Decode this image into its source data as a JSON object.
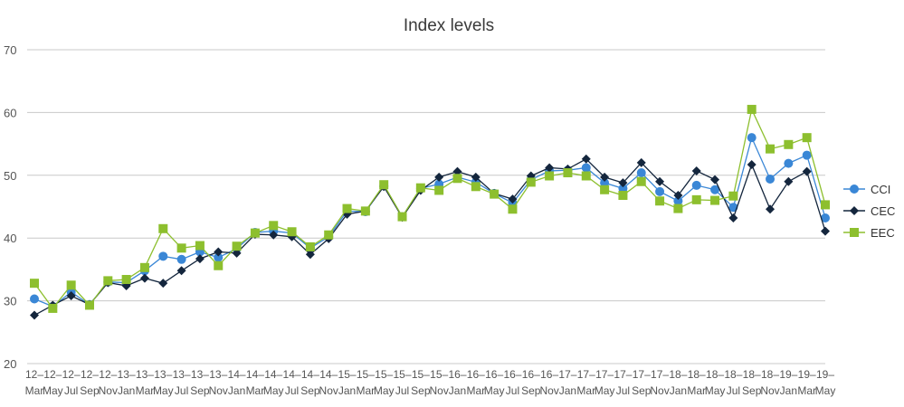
{
  "chart_data": {
    "type": "line",
    "title": "Index levels",
    "xlabel": "",
    "ylabel": "",
    "ylim": [
      20,
      70
    ],
    "yticks": [
      20,
      30,
      40,
      50,
      60,
      70
    ],
    "grid": true,
    "legend_position": "right",
    "x": [
      "12–Mar",
      "12–May",
      "12–Jul",
      "12–Sep",
      "12–Nov",
      "13–Jan",
      "13–Mar",
      "13–May",
      "13–Jul",
      "13–Sep",
      "13–Nov",
      "14–Jan",
      "14–Mar",
      "14–May",
      "14–Jul",
      "14–Sep",
      "14–Nov",
      "15–Jan",
      "15–Mar",
      "15–May",
      "15–Jul",
      "15–Sep",
      "15–Nov",
      "16–Jan",
      "16–Mar",
      "16–May",
      "16–Jul",
      "16–Sep",
      "16–Nov",
      "17–Jan",
      "17–Mar",
      "17–May",
      "17–Jul",
      "17–Sep",
      "17–Nov",
      "18–Jan",
      "18–Mar",
      "18–May",
      "18–Jul",
      "18–Sep",
      "18–Nov",
      "19–Jan",
      "19–Mar",
      "19–May"
    ],
    "series": [
      {
        "name": "CCI",
        "color": "#3a87d6",
        "marker": "circle",
        "values": [
          30.3,
          29.1,
          31.4,
          29.4,
          33.0,
          32.9,
          34.8,
          37.1,
          36.6,
          37.8,
          36.9,
          38.3,
          40.9,
          41.1,
          40.8,
          38.4,
          40.2,
          44.3,
          44.2,
          48.3,
          43.4,
          47.9,
          48.6,
          49.7,
          48.9,
          47.1,
          45.6,
          49.3,
          50.7,
          50.8,
          51.2,
          48.8,
          47.9,
          50.4,
          47.4,
          45.9,
          48.4,
          47.7,
          44.9,
          56.0,
          49.4,
          51.9,
          53.2,
          43.2
        ]
      },
      {
        "name": "CEC",
        "color": "#14263d",
        "marker": "diamond",
        "values": [
          27.7,
          29.3,
          30.8,
          29.4,
          32.9,
          32.4,
          33.6,
          32.8,
          34.8,
          36.7,
          37.8,
          37.6,
          40.6,
          40.5,
          40.2,
          37.4,
          39.9,
          43.8,
          44.3,
          48.2,
          43.3,
          47.6,
          49.7,
          50.6,
          49.7,
          47.1,
          46.2,
          49.9,
          51.2,
          51.0,
          52.6,
          49.7,
          48.8,
          52.0,
          49.0,
          46.8,
          50.7,
          49.3,
          43.2,
          51.7,
          44.6,
          49.0,
          50.6,
          41.1
        ]
      },
      {
        "name": "EEC",
        "color": "#8dbf2e",
        "marker": "square",
        "values": [
          32.8,
          28.8,
          32.5,
          29.3,
          33.2,
          33.4,
          35.3,
          41.5,
          38.4,
          38.8,
          35.6,
          38.7,
          40.8,
          42.0,
          41.0,
          38.6,
          40.5,
          44.7,
          44.3,
          48.5,
          43.4,
          48.0,
          47.6,
          49.5,
          48.2,
          47.0,
          44.6,
          48.9,
          49.9,
          50.4,
          49.9,
          47.7,
          46.8,
          49.0,
          45.9,
          44.7,
          46.1,
          46.0,
          46.7,
          60.5,
          54.2,
          54.9,
          56.0,
          45.3
        ]
      }
    ]
  }
}
